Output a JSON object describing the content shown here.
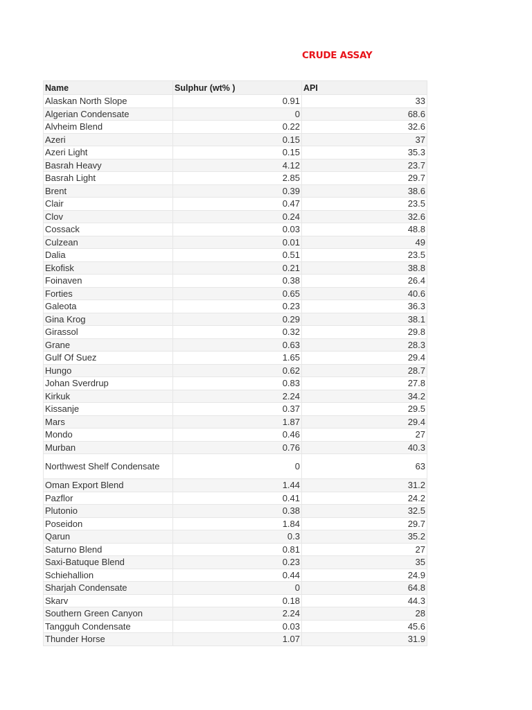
{
  "document": {
    "title": "CRUDE ASSAY",
    "title_color": "#e8141b"
  },
  "table": {
    "headers": [
      "Name",
      "Sulphur (wt% )",
      "API"
    ],
    "rows": [
      {
        "name": "Alaskan North Slope",
        "sulphur": "0.91",
        "api": "33"
      },
      {
        "name": "Algerian Condensate",
        "sulphur": "0",
        "api": "68.6"
      },
      {
        "name": "Alvheim Blend",
        "sulphur": "0.22",
        "api": "32.6"
      },
      {
        "name": "Azeri",
        "sulphur": "0.15",
        "api": "37"
      },
      {
        "name": "Azeri Light",
        "sulphur": "0.15",
        "api": "35.3"
      },
      {
        "name": "Basrah Heavy",
        "sulphur": "4.12",
        "api": "23.7"
      },
      {
        "name": "Basrah Light",
        "sulphur": "2.85",
        "api": "29.7"
      },
      {
        "name": "Brent",
        "sulphur": "0.39",
        "api": "38.6"
      },
      {
        "name": "Clair",
        "sulphur": "0.47",
        "api": "23.5"
      },
      {
        "name": "Clov",
        "sulphur": "0.24",
        "api": "32.6"
      },
      {
        "name": "Cossack",
        "sulphur": "0.03",
        "api": "48.8"
      },
      {
        "name": "Culzean",
        "sulphur": "0.01",
        "api": "49"
      },
      {
        "name": "Dalia",
        "sulphur": "0.51",
        "api": "23.5"
      },
      {
        "name": "Ekofisk",
        "sulphur": "0.21",
        "api": "38.8"
      },
      {
        "name": "Foinaven",
        "sulphur": "0.38",
        "api": "26.4"
      },
      {
        "name": "Forties",
        "sulphur": "0.65",
        "api": "40.6"
      },
      {
        "name": "Galeota",
        "sulphur": "0.23",
        "api": "36.3"
      },
      {
        "name": "Gina Krog",
        "sulphur": "0.29",
        "api": "38.1"
      },
      {
        "name": "Girassol",
        "sulphur": "0.32",
        "api": "29.8"
      },
      {
        "name": "Grane",
        "sulphur": "0.63",
        "api": "28.3"
      },
      {
        "name": "Gulf Of Suez",
        "sulphur": "1.65",
        "api": "29.4"
      },
      {
        "name": "Hungo",
        "sulphur": "0.62",
        "api": "28.7"
      },
      {
        "name": "Johan Sverdrup",
        "sulphur": "0.83",
        "api": "27.8"
      },
      {
        "name": "Kirkuk",
        "sulphur": "2.24",
        "api": "34.2"
      },
      {
        "name": "Kissanje",
        "sulphur": "0.37",
        "api": "29.5"
      },
      {
        "name": "Mars",
        "sulphur": "1.87",
        "api": "29.4"
      },
      {
        "name": "Mondo",
        "sulphur": "0.46",
        "api": "27"
      },
      {
        "name": "Murban",
        "sulphur": "0.76",
        "api": "40.3"
      },
      {
        "name": "Northwest Shelf Condensate",
        "sulphur": "0",
        "api": "63"
      },
      {
        "name": "Oman Export Blend",
        "sulphur": "1.44",
        "api": "31.2"
      },
      {
        "name": "Pazflor",
        "sulphur": "0.41",
        "api": "24.2"
      },
      {
        "name": "Plutonio",
        "sulphur": "0.38",
        "api": "32.5"
      },
      {
        "name": "Poseidon",
        "sulphur": "1.84",
        "api": "29.7"
      },
      {
        "name": "Qarun",
        "sulphur": "0.3",
        "api": "35.2"
      },
      {
        "name": "Saturno Blend",
        "sulphur": "0.81",
        "api": "27"
      },
      {
        "name": "Saxi-Batuque Blend",
        "sulphur": "0.23",
        "api": "35"
      },
      {
        "name": "Schiehallion",
        "sulphur": "0.44",
        "api": "24.9"
      },
      {
        "name": "Sharjah Condensate",
        "sulphur": "0",
        "api": "64.8"
      },
      {
        "name": "Skarv",
        "sulphur": "0.18",
        "api": "44.3"
      },
      {
        "name": "Southern Green Canyon",
        "sulphur": "2.24",
        "api": "28"
      },
      {
        "name": "Tangguh Condensate",
        "sulphur": "0.03",
        "api": "45.6"
      },
      {
        "name": "Thunder Horse",
        "sulphur": "1.07",
        "api": "31.9"
      }
    ]
  }
}
